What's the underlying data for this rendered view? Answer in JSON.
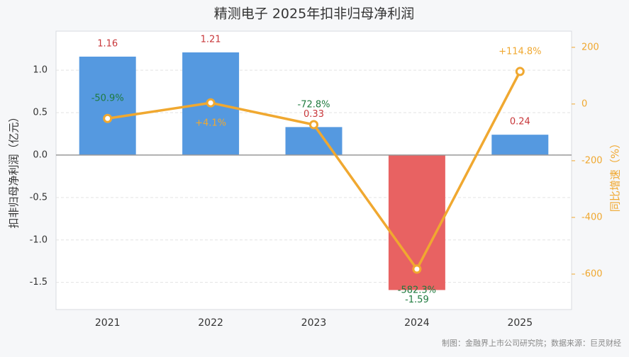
{
  "chart_data": {
    "type": "bar-line",
    "title": "精测电子 2025年扣非归母净利润",
    "y_label": "扣非归母净利润（亿元）",
    "y2_label": "同比增速（%）",
    "footer": "制图：金融界上市公司研究院；数据来源：巨灵财经",
    "categories": [
      "2021",
      "2022",
      "2023",
      "2024",
      "2025"
    ],
    "series": [
      {
        "name": "扣非归母净利润",
        "type": "bar",
        "color": "#5599e0",
        "negative_color": "#e86262",
        "values": [
          1.16,
          1.21,
          0.33,
          -1.59,
          0.24
        ]
      },
      {
        "name": "同比增速",
        "type": "line",
        "axis": "y2",
        "color": "#f0a830",
        "values": [
          -50.9,
          4.1,
          -72.8,
          -582.3,
          114.8
        ],
        "value_labels": [
          "-50.9%",
          "+4.1%",
          "-72.8%",
          "-582.3%",
          "+114.8%"
        ]
      }
    ],
    "ylim": [
      -1.82,
      1.46
    ],
    "yticks": [
      {
        "value": 1.0,
        "label": "1.0"
      },
      0.5,
      {
        "value": 0,
        "label": "0.0"
      },
      -0.5,
      {
        "value": -1.0,
        "label": "-1.0"
      },
      -1.5
    ],
    "y2lim": [
      -725,
      257
    ],
    "y2ticks": [
      200,
      0,
      -200,
      -400,
      -600
    ],
    "grid": true
  }
}
